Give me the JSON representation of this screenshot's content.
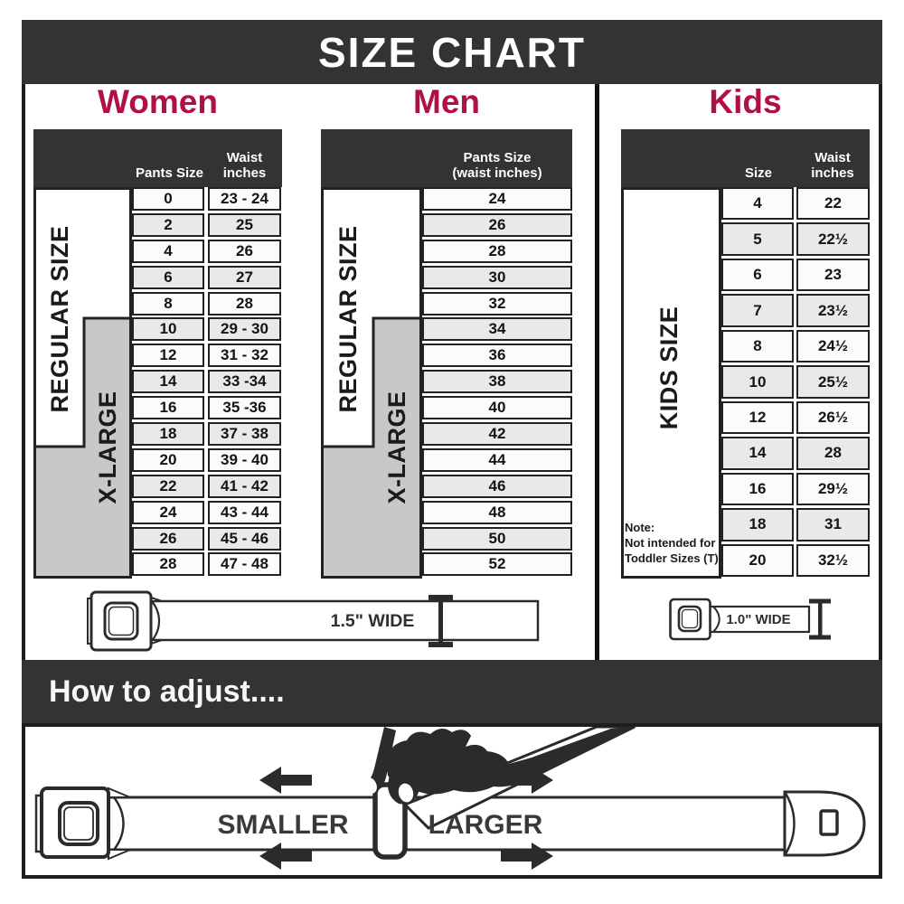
{
  "title": "SIZE CHART",
  "colors": {
    "dark": "#333336",
    "accent_red": "#b01144",
    "xlarge_gray": "#c8c8c8",
    "row_alt": "#e9e9e9"
  },
  "sections": {
    "women": {
      "heading": "Women",
      "col1_header": "Pants Size",
      "col2_header_line1": "Waist",
      "col2_header_line2": "inches",
      "regular_label": "REGULAR SIZE",
      "xlarge_label": "X-LARGE",
      "rows": [
        [
          "0",
          "23 - 24"
        ],
        [
          "2",
          "25"
        ],
        [
          "4",
          "26"
        ],
        [
          "6",
          "27"
        ],
        [
          "8",
          "28"
        ],
        [
          "10",
          "29 - 30"
        ],
        [
          "12",
          "31 - 32"
        ],
        [
          "14",
          "33 -34"
        ],
        [
          "16",
          "35 -36"
        ],
        [
          "18",
          "37 - 38"
        ],
        [
          "20",
          "39 - 40"
        ],
        [
          "22",
          "41 - 42"
        ],
        [
          "24",
          "43 - 44"
        ],
        [
          "26",
          "45 - 46"
        ],
        [
          "28",
          "47 - 48"
        ]
      ]
    },
    "men": {
      "heading": "Men",
      "col_header_line1": "Pants Size",
      "col_header_line2": "(waist inches)",
      "regular_label": "REGULAR SIZE",
      "xlarge_label": "X-LARGE",
      "rows": [
        "24",
        "26",
        "28",
        "30",
        "32",
        "34",
        "36",
        "38",
        "40",
        "42",
        "44",
        "46",
        "48",
        "50",
        "52"
      ]
    },
    "kids": {
      "heading": "Kids",
      "col1_header": "Size",
      "col2_header_line1": "Waist",
      "col2_header_line2": "inches",
      "side_label": "KIDS SIZE",
      "note_line1": "Note:",
      "note_line2": "Not intended for",
      "note_line3": "Toddler Sizes (T)",
      "rows": [
        [
          "4",
          "22"
        ],
        [
          "5",
          "22½"
        ],
        [
          "6",
          "23"
        ],
        [
          "7",
          "23½"
        ],
        [
          "8",
          "24½"
        ],
        [
          "10",
          "25½"
        ],
        [
          "12",
          "26½"
        ],
        [
          "14",
          "28"
        ],
        [
          "16",
          "29½"
        ],
        [
          "18",
          "31"
        ],
        [
          "20",
          "32½"
        ]
      ]
    }
  },
  "belts": {
    "adult_width_label": "1.5\" WIDE",
    "kids_width_label": "1.0\" WIDE"
  },
  "adjust": {
    "heading": "How to adjust....",
    "smaller_label": "SMALLER",
    "larger_label": "LARGER"
  }
}
